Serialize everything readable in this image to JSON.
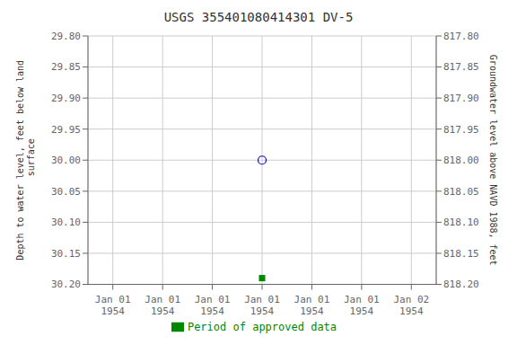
{
  "chart_data": {
    "type": "scatter",
    "title": "USGS 355401080414301 DV-5",
    "categories": [
      "Jan 01\n1954",
      "Jan 01\n1954",
      "Jan 01\n1954",
      "Jan 01\n1954",
      "Jan 01\n1954",
      "Jan 01\n1954",
      "Jan 02\n1954"
    ],
    "series": [
      {
        "color": "#0000cc",
        "marker": "open_circle",
        "values": [
          null,
          null,
          null,
          30.0,
          null,
          null,
          null
        ]
      },
      {
        "name": "Period of approved data",
        "color": "#008800",
        "marker": "square",
        "values": [
          null,
          null,
          null,
          30.19,
          null,
          null,
          null
        ]
      }
    ],
    "ylabel": "Depth to water level, feet below land\n surface",
    "y2label": "Groundwater level above NAVD 1988, feet",
    "ylim": [
      30.2,
      29.8
    ],
    "yticks": [
      {
        "value": 29.8,
        "label": "29.80"
      },
      {
        "value": 29.85,
        "label": "29.85"
      },
      {
        "value": 29.9,
        "label": "29.90"
      },
      {
        "value": 29.95,
        "label": "29.95"
      },
      {
        "value": 30.0,
        "label": "30.00"
      },
      {
        "value": 30.05,
        "label": "30.05"
      },
      {
        "value": 30.1,
        "label": "30.10"
      },
      {
        "value": 30.15,
        "label": "30.15"
      },
      {
        "value": 30.2,
        "label": "30.20"
      }
    ],
    "y2lim": [
      818.2,
      817.8
    ],
    "y2ticks": [
      {
        "value": 817.8,
        "label": "817.80"
      },
      {
        "value": 817.85,
        "label": "817.85"
      },
      {
        "value": 817.9,
        "label": "817.90"
      },
      {
        "value": 817.95,
        "label": "817.95"
      },
      {
        "value": 818.0,
        "label": "818.00"
      },
      {
        "value": 818.05,
        "label": "818.05"
      },
      {
        "value": 818.1,
        "label": "818.10"
      },
      {
        "value": 818.15,
        "label": "818.15"
      },
      {
        "value": 818.2,
        "label": "818.20"
      }
    ],
    "grid": true,
    "legend": "bottom"
  }
}
